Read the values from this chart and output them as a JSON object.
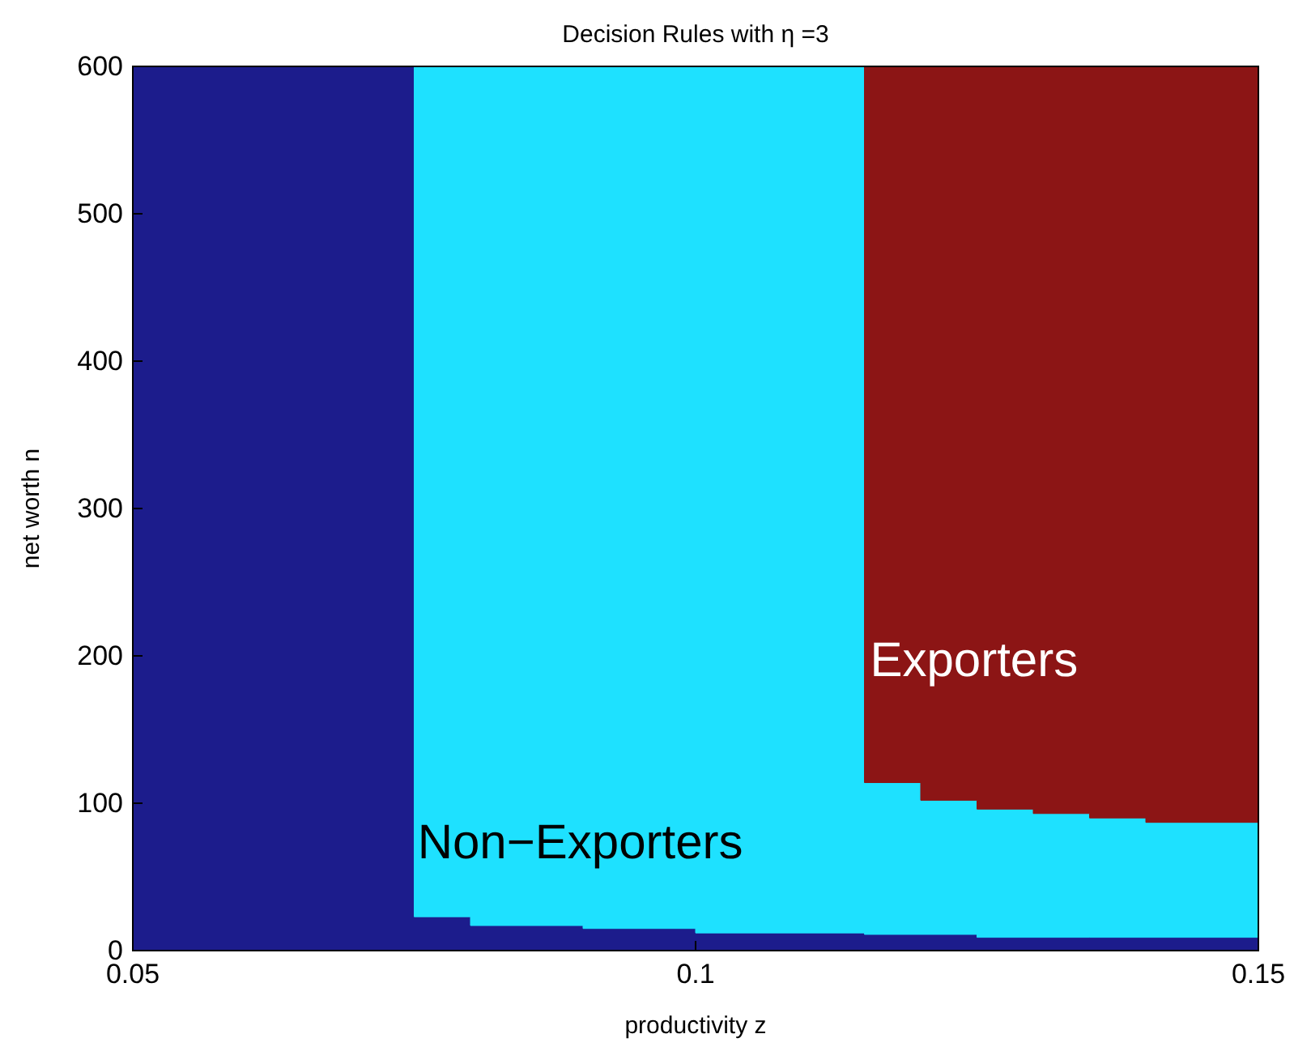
{
  "chart_data": {
    "type": "area",
    "stacked": true,
    "title": "Decision Rules with η =3",
    "xlabel": "productivity z",
    "ylabel": "net worth n",
    "x": [
      0.05,
      0.075,
      0.08,
      0.09,
      0.1,
      0.115,
      0.12,
      0.125,
      0.13,
      0.135,
      0.14,
      0.15
    ],
    "series": [
      {
        "color": "#1c1c8c",
        "values": [
          600,
          23,
          17,
          15,
          12,
          11,
          11,
          9,
          9,
          9,
          9,
          9
        ]
      },
      {
        "color": "#1ee1ff",
        "values": [
          0,
          577,
          583,
          585,
          588,
          103,
          91,
          87,
          84,
          81,
          78,
          78
        ]
      },
      {
        "color": "#8c1515",
        "values": [
          0,
          0,
          0,
          0,
          0,
          486,
          498,
          504,
          507,
          510,
          513,
          513
        ]
      }
    ],
    "annotations": [
      {
        "text": "Non−Exporters",
        "x": 0.0753,
        "y": 74
      },
      {
        "text": "Exporters",
        "x": 0.1155,
        "y": 198
      }
    ],
    "xlim": [
      0.05,
      0.15
    ],
    "xticks": [
      0.05,
      0.1,
      0.15
    ],
    "ylim": [
      0,
      600
    ],
    "yticks": [
      0,
      100,
      200,
      300,
      400,
      500,
      600
    ]
  }
}
